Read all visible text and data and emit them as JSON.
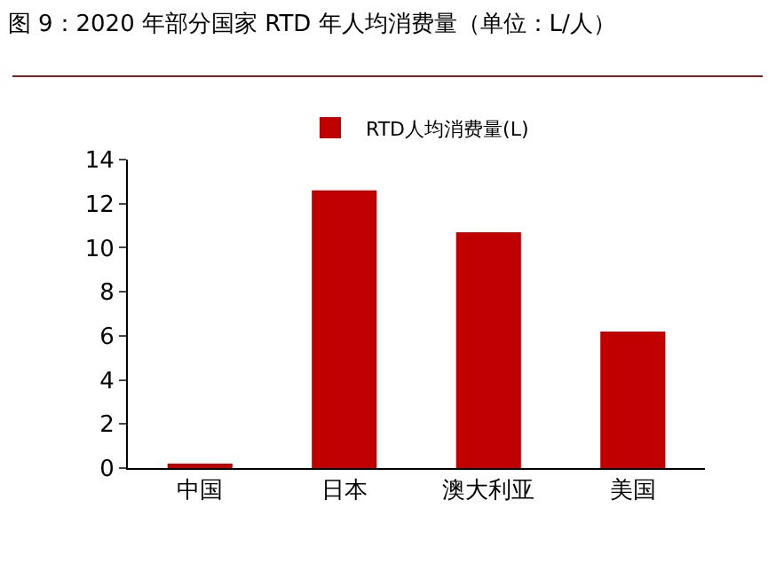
{
  "chart_data": {
    "type": "bar",
    "title": "图 9：2020 年部分国家 RTD 年人均消费量（单位：L/人）",
    "categories": [
      "中国",
      "日本",
      "澳大利亚",
      "美国"
    ],
    "series": [
      {
        "name": "RTD人均消费量(L)",
        "color": "#c00000",
        "values": [
          0.2,
          12.6,
          10.7,
          6.2
        ]
      }
    ],
    "ylim": [
      0,
      14
    ],
    "yticks": [
      0,
      2,
      4,
      6,
      8,
      10,
      12,
      14
    ],
    "grid": false,
    "legend": "top"
  }
}
